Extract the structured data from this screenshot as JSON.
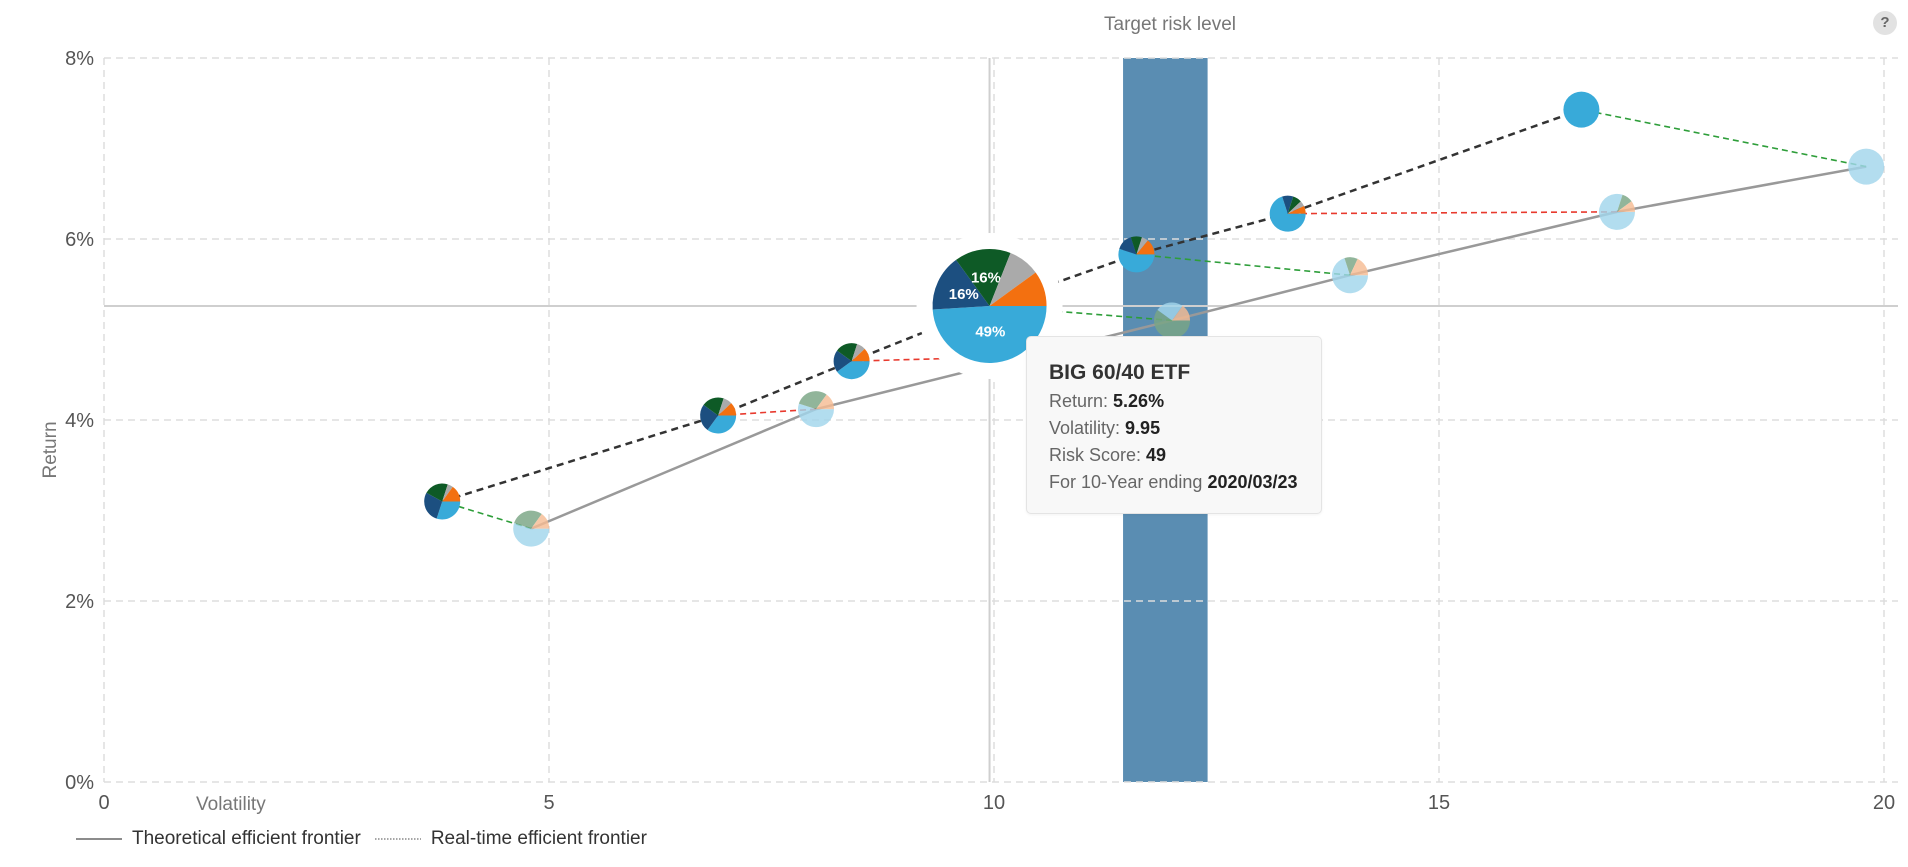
{
  "chart_data": {
    "type": "scatter",
    "subtype": "bubble-pie",
    "xlabel": "Volatility",
    "ylabel": "Return",
    "xlim": [
      0,
      20
    ],
    "ylim": [
      0,
      8
    ],
    "x_ticks": [
      "0",
      "5",
      "10",
      "15",
      "20"
    ],
    "y_ticks": [
      "0%",
      "2%",
      "4%",
      "6%",
      "8%"
    ],
    "grid": true,
    "band": {
      "label": "Target risk level",
      "x_from": 11.45,
      "x_to": 12.4,
      "color": "#5a8db2"
    },
    "crosshair": {
      "x": 9.95,
      "y": 5.26
    },
    "colors": {
      "blue": "#38aad9",
      "navy": "#1c4f80",
      "green": "#0e5a26",
      "gray": "#aaaaaa",
      "orange": "#f37010",
      "light_blue": "#a2d6ec",
      "light_orange": "#f6bc94",
      "sage": "#7aa685"
    },
    "theoretical_frontier": {
      "name": "Theoretical efficient frontier",
      "color": "#999999",
      "points": [
        [
          4.8,
          2.8
        ],
        [
          8.0,
          4.12
        ],
        [
          12.0,
          5.1
        ],
        [
          14.0,
          5.6
        ],
        [
          17.0,
          6.3
        ],
        [
          19.8,
          6.8
        ]
      ]
    },
    "realtime_frontier": {
      "name": "Real-time efficient frontier",
      "color": "#333333",
      "points": [
        [
          3.8,
          3.1
        ],
        [
          6.9,
          4.05
        ],
        [
          8.4,
          4.65
        ],
        [
          9.95,
          5.26
        ],
        [
          11.6,
          5.83
        ],
        [
          13.3,
          6.28
        ],
        [
          16.6,
          7.43
        ]
      ]
    },
    "portfolios": [
      {
        "x": 3.8,
        "y": 3.1,
        "size": "small",
        "slices": [
          [
            "blue",
            0.3
          ],
          [
            "navy",
            0.28
          ],
          [
            "green",
            0.22
          ],
          [
            "gray",
            0.05
          ],
          [
            "orange",
            0.15
          ]
        ]
      },
      {
        "x": 4.8,
        "y": 2.8,
        "size": "small",
        "faded": true,
        "slices": [
          [
            "light_blue",
            0.55
          ],
          [
            "sage",
            0.3
          ],
          [
            "light_orange",
            0.15
          ]
        ]
      },
      {
        "x": 6.9,
        "y": 4.05,
        "size": "small",
        "slices": [
          [
            "blue",
            0.35
          ],
          [
            "navy",
            0.25
          ],
          [
            "green",
            0.2
          ],
          [
            "gray",
            0.08
          ],
          [
            "orange",
            0.12
          ]
        ]
      },
      {
        "x": 8.0,
        "y": 4.12,
        "size": "small",
        "faded": true,
        "slices": [
          [
            "light_blue",
            0.55
          ],
          [
            "sage",
            0.3
          ],
          [
            "light_orange",
            0.15
          ]
        ]
      },
      {
        "x": 8.4,
        "y": 4.65,
        "size": "small",
        "slices": [
          [
            "blue",
            0.4
          ],
          [
            "navy",
            0.2
          ],
          [
            "green",
            0.2
          ],
          [
            "gray",
            0.08
          ],
          [
            "orange",
            0.12
          ]
        ]
      },
      {
        "x": 9.95,
        "y": 5.26,
        "size": "large",
        "highlighted": true,
        "slices": [
          [
            "blue",
            0.49,
            "49%"
          ],
          [
            "navy",
            0.16,
            "16%"
          ],
          [
            "green",
            0.16,
            "16%"
          ],
          [
            "gray",
            0.09,
            ""
          ],
          [
            "orange",
            0.1,
            ""
          ]
        ]
      },
      {
        "x": 11.6,
        "y": 5.83,
        "size": "small",
        "slices": [
          [
            "blue",
            0.55
          ],
          [
            "navy",
            0.15
          ],
          [
            "green",
            0.1
          ],
          [
            "gray",
            0.06
          ],
          [
            "orange",
            0.14
          ]
        ]
      },
      {
        "x": 12.0,
        "y": 5.1,
        "size": "small",
        "faded": true,
        "slices": [
          [
            "sage",
            0.6
          ],
          [
            "light_blue",
            0.25
          ],
          [
            "light_orange",
            0.15
          ]
        ]
      },
      {
        "x": 13.3,
        "y": 6.28,
        "size": "small",
        "slices": [
          [
            "blue",
            0.7
          ],
          [
            "navy",
            0.1
          ],
          [
            "green",
            0.08
          ],
          [
            "gray",
            0.05
          ],
          [
            "orange",
            0.07
          ]
        ]
      },
      {
        "x": 14.0,
        "y": 5.6,
        "size": "small",
        "faded": true,
        "slices": [
          [
            "light_blue",
            0.7
          ],
          [
            "sage",
            0.12
          ],
          [
            "light_orange",
            0.18
          ]
        ]
      },
      {
        "x": 16.6,
        "y": 7.43,
        "size": "small",
        "slices": [
          [
            "blue",
            1.0
          ]
        ]
      },
      {
        "x": 17.0,
        "y": 6.3,
        "size": "small",
        "faded": true,
        "slices": [
          [
            "light_blue",
            0.8
          ],
          [
            "sage",
            0.1
          ],
          [
            "light_orange",
            0.1
          ]
        ]
      },
      {
        "x": 19.8,
        "y": 6.8,
        "size": "small",
        "faded": true,
        "slices": [
          [
            "light_blue",
            1.0
          ]
        ]
      }
    ],
    "transitions": [
      {
        "from": [
          4.8,
          2.8
        ],
        "to": [
          3.8,
          3.1
        ],
        "color": "#2e9e3a"
      },
      {
        "from": [
          8.0,
          4.12
        ],
        "to": [
          6.9,
          4.05
        ],
        "color": "#e83a2e"
      },
      {
        "from": [
          9.5,
          4.68
        ],
        "to": [
          8.4,
          4.65
        ],
        "color": "#e83a2e"
      },
      {
        "from": [
          12.0,
          5.1
        ],
        "to": [
          9.95,
          5.26
        ],
        "color": "#2e9e3a"
      },
      {
        "from": [
          14.0,
          5.6
        ],
        "to": [
          11.6,
          5.83
        ],
        "color": "#2e9e3a"
      },
      {
        "from": [
          17.0,
          6.3
        ],
        "to": [
          13.3,
          6.28
        ],
        "color": "#e83a2e"
      },
      {
        "from": [
          19.8,
          6.8
        ],
        "to": [
          16.6,
          7.43
        ],
        "color": "#2e9e3a"
      }
    ]
  },
  "header": {
    "band_label": "Target risk level",
    "help_label": "?"
  },
  "axes": {
    "x_title": "Volatility",
    "y_title": "Return"
  },
  "tooltip": {
    "title": "BIG 60/40 ETF",
    "return_label": "Return: ",
    "return_value": "5.26%",
    "volatility_label": "Volatility: ",
    "volatility_value": "9.95",
    "risk_label": "Risk Score: ",
    "risk_value": "49",
    "period_label": "For 10-Year ending ",
    "period_value": "2020/03/23"
  },
  "legend": {
    "theoretical": "Theoretical efficient frontier",
    "realtime": "Real-time efficient frontier"
  }
}
